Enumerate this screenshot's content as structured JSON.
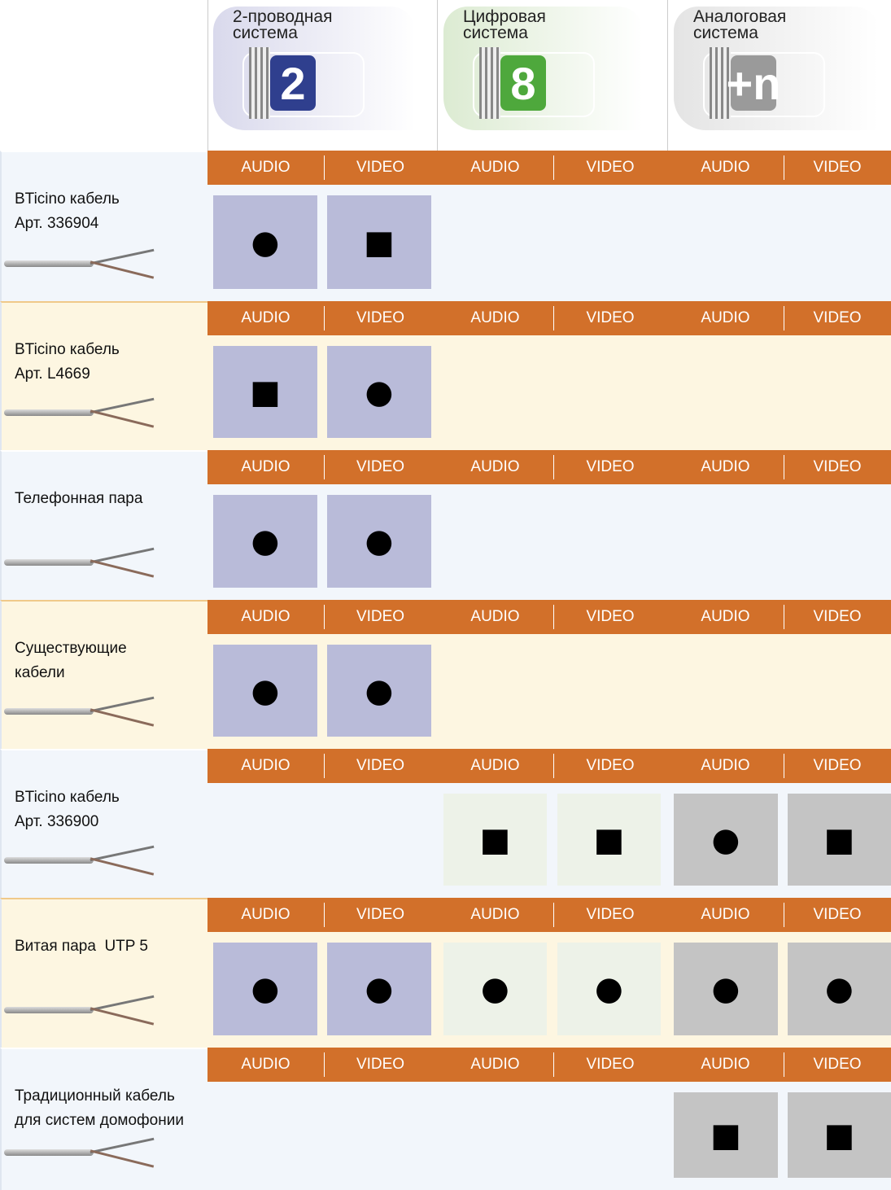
{
  "header": {
    "systems": [
      {
        "title": [
          "2-проводная",
          "система"
        ],
        "badge": "2"
      },
      {
        "title": [
          "Цифровая",
          "система"
        ],
        "badge": "8"
      },
      {
        "title": [
          "Аналоговая",
          "система"
        ],
        "badge": "+n"
      }
    ]
  },
  "columns": [
    "AUDIO",
    "VIDEO",
    "AUDIO",
    "VIDEO",
    "AUDIO",
    "VIDEO"
  ],
  "rows": [
    {
      "label": [
        "BTicino кабель",
        "Арт. 336904"
      ],
      "cells": [
        "●",
        "■",
        null,
        null,
        null,
        null
      ]
    },
    {
      "label": [
        "BTicino кабель",
        "Арт. L4669"
      ],
      "cells": [
        "■",
        "●",
        null,
        null,
        null,
        null
      ]
    },
    {
      "label": [
        "Телефонная пара"
      ],
      "cells": [
        "●",
        "●",
        null,
        null,
        null,
        null
      ]
    },
    {
      "label": [
        "Существующие",
        "кабели"
      ],
      "cells": [
        "●",
        "●",
        null,
        null,
        null,
        null
      ]
    },
    {
      "label": [
        "BTicino кабель",
        "Арт. 336900"
      ],
      "cells": [
        null,
        null,
        "■",
        "■",
        "●",
        "■"
      ]
    },
    {
      "label": [
        "Витая пара  UTP 5"
      ],
      "cells": [
        "●",
        "●",
        "●",
        "●",
        "●",
        "●"
      ]
    },
    {
      "label": [
        "Традиционный кабель",
        "для систем домофонии"
      ],
      "cells": [
        null,
        null,
        null,
        null,
        "■",
        "■"
      ]
    }
  ]
}
